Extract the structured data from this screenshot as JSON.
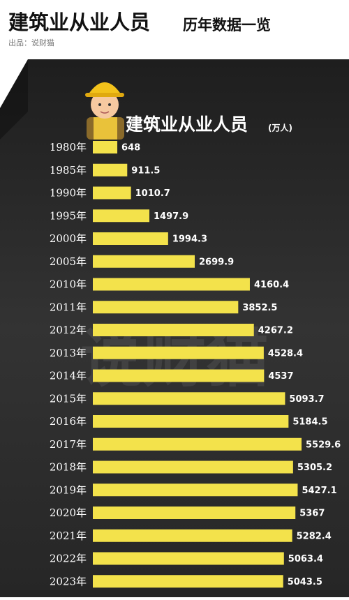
{
  "chart_data": {
    "type": "bar",
    "title": "建筑业从业人员",
    "title_suffix": "历年数据一览",
    "subtitle": "出品：说财猫",
    "chart_title": "建筑业从业人员",
    "unit": "(万人)",
    "watermark": "说财猫",
    "orientation": "horizontal",
    "color": "#f3e24b",
    "categories": [
      "1980年",
      "1985年",
      "1990年",
      "1995年",
      "2000年",
      "2005年",
      "2010年",
      "2011年",
      "2012年",
      "2013年",
      "2014年",
      "2015年",
      "2016年",
      "2017年",
      "2018年",
      "2019年",
      "2020年",
      "2021年",
      "2022年",
      "2023年"
    ],
    "values": [
      648,
      911.5,
      1010.7,
      1497.9,
      1994.3,
      2699.9,
      4160.4,
      3852.5,
      4267.2,
      4528.4,
      4537,
      5093.7,
      5184.5,
      5529.6,
      5305.2,
      5427.1,
      5367,
      5282.4,
      5063.4,
      5043.5
    ]
  }
}
